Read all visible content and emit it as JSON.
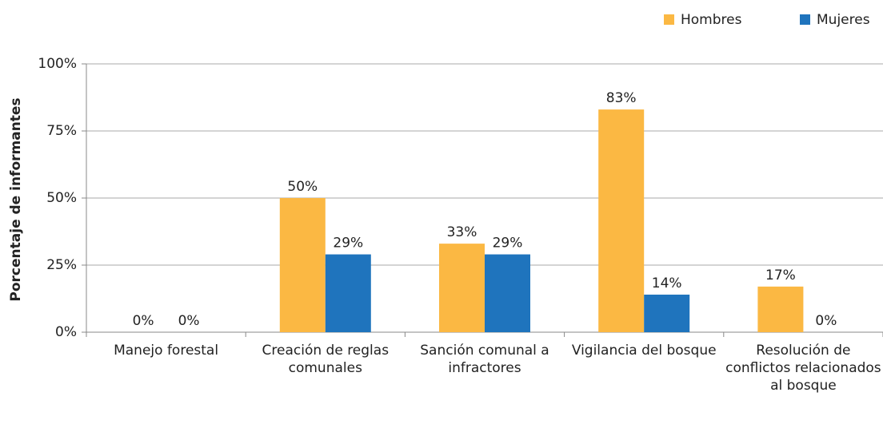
{
  "chart_data": {
    "type": "bar",
    "y_label": "Porcentaje de informantes",
    "categories": [
      "Manejo forestal",
      "Creación de reglas comunales",
      "Sanción comunal a infractores",
      "Vigilancia del bosque",
      "Resolución de conflictos relacionados al bosque"
    ],
    "series": [
      {
        "name": "Hombres",
        "color": "#fbb843",
        "values": [
          0,
          50,
          33,
          83,
          17
        ],
        "value_labels": [
          "0%",
          "50%",
          "33%",
          "83%",
          "17%"
        ]
      },
      {
        "name": "Mujeres",
        "color": "#1f74bd",
        "values": [
          0,
          29,
          29,
          14,
          0
        ],
        "value_labels": [
          "0%",
          "29%",
          "29%",
          "14%",
          "0%"
        ]
      }
    ],
    "ylim": [
      0,
      100
    ],
    "yticks": [
      {
        "value": 0,
        "label": "0%"
      },
      {
        "value": 25,
        "label": "25%"
      },
      {
        "value": 50,
        "label": "50%"
      },
      {
        "value": 75,
        "label": "75%"
      },
      {
        "value": 100,
        "label": "100%"
      }
    ],
    "grid": true,
    "legend": "top-right"
  }
}
